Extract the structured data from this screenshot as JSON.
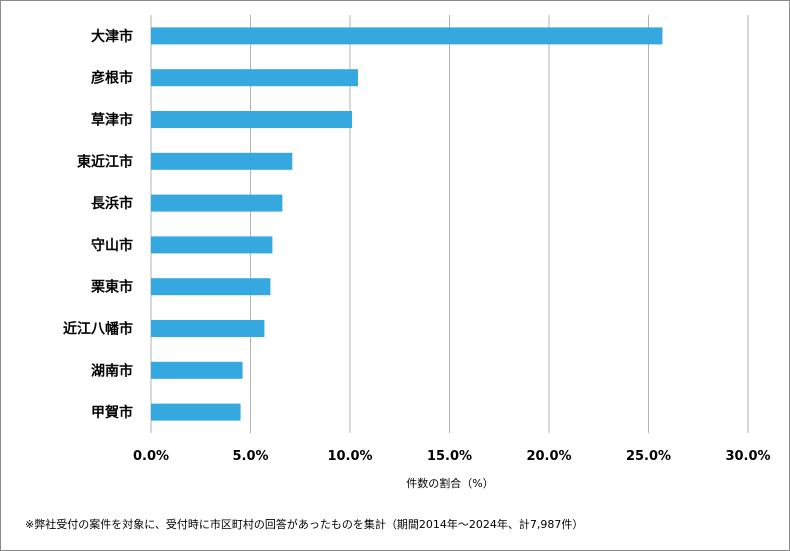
{
  "chart_data": {
    "type": "bar",
    "orientation": "horizontal",
    "categories": [
      "大津市",
      "彦根市",
      "草津市",
      "東近江市",
      "長浜市",
      "守山市",
      "栗東市",
      "近江八幡市",
      "湖南市",
      "甲賀市"
    ],
    "values": [
      25.7,
      10.4,
      10.1,
      7.1,
      6.6,
      6.1,
      6.0,
      5.7,
      4.6,
      4.5
    ],
    "xlabel": "件数の割合（%）",
    "xlim": [
      0,
      30
    ],
    "xticks": [
      0,
      5,
      10,
      15,
      20,
      25,
      30
    ],
    "tick_labels": [
      "0.0%",
      "5.0%",
      "10.0%",
      "15.0%",
      "20.0%",
      "25.0%",
      "30.0%"
    ],
    "grid": true,
    "bar_color": "#35a8e0",
    "grid_color": "#b3b3b3"
  },
  "footnote": "※弊社受付の案件を対象に、受付時に市区町村の回答があったものを集計（期間2014年～2024年、計7,987件）"
}
